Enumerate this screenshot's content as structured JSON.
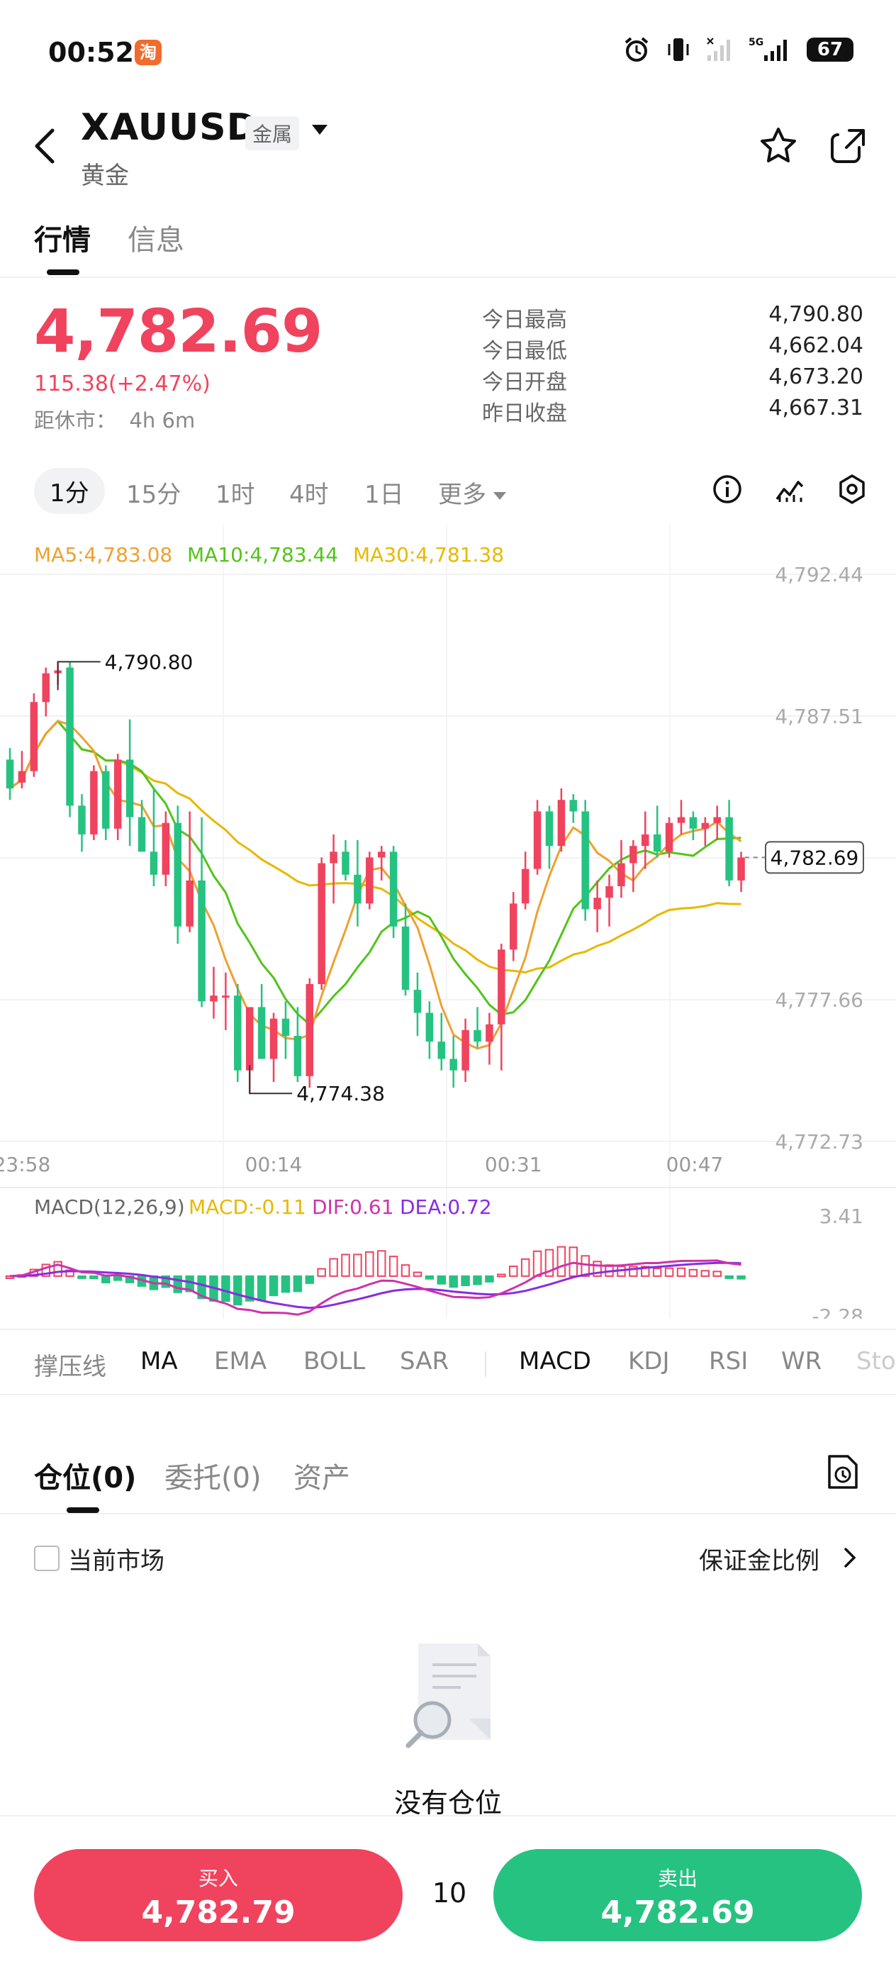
{
  "status_bar": {
    "time": "00:52",
    "app_badge": "淘",
    "network": "5G",
    "battery": "67"
  },
  "header": {
    "symbol": "XAUUSD",
    "category_badge": "金属",
    "name": "黄金"
  },
  "tabs": [
    {
      "label": "行情"
    },
    {
      "label": "信息"
    }
  ],
  "quote": {
    "price": "4,782.69",
    "change": "115.38(+2.47%)",
    "close_in_label": "距休市：",
    "close_in_value": "4h 6m",
    "stats": [
      {
        "label": "今日最高",
        "value": "4,790.80"
      },
      {
        "label": "今日最低",
        "value": "4,662.04"
      },
      {
        "label": "今日开盘",
        "value": "4,673.20"
      },
      {
        "label": "昨日收盘",
        "value": "4,667.31"
      }
    ]
  },
  "intervals": [
    "1分",
    "15分",
    "1时",
    "4时",
    "1日",
    "更多"
  ],
  "ma_legend": {
    "ma5": "MA5:4,783.08",
    "ma10": "MA10:4,783.44",
    "ma30": "MA30:4,781.38"
  },
  "macd_legend": {
    "name": "MACD(12,26,9)",
    "macd": "MACD:-0.11",
    "dif": "DIF:0.61",
    "dea": "DEA:0.72"
  },
  "chart_data": {
    "type": "candlestick",
    "series_name": "XAUUSD 1分",
    "y_ticks": [
      "4,792.44",
      "4,787.51",
      "4,782.69",
      "4,777.66",
      "4,772.73"
    ],
    "ylim": [
      4772.73,
      4792.44
    ],
    "x_ticks": [
      "23:58",
      "00:14",
      "00:31",
      "00:47"
    ],
    "high_label": "4,790.80",
    "low_label": "4,774.38",
    "current_price_label": "4,782.69",
    "candles": [
      [
        4786.0,
        4786.4,
        4784.6,
        4785.0
      ],
      [
        4785.2,
        4786.3,
        4785.0,
        4785.6
      ],
      [
        4785.6,
        4788.3,
        4785.4,
        4788.0
      ],
      [
        4788.0,
        4789.2,
        4787.5,
        4789.0
      ],
      [
        4789.0,
        4789.4,
        4788.6,
        4789.1
      ],
      [
        4789.2,
        4789.4,
        4784.0,
        4784.4
      ],
      [
        4784.4,
        4784.8,
        4782.8,
        4783.4
      ],
      [
        4783.4,
        4785.8,
        4783.2,
        4785.6
      ],
      [
        4785.6,
        4785.8,
        4783.2,
        4783.6
      ],
      [
        4783.6,
        4786.2,
        4783.2,
        4786.0
      ],
      [
        4786.0,
        4787.4,
        4783.0,
        4784.0
      ],
      [
        4784.0,
        4784.6,
        4782.8,
        4782.8
      ],
      [
        4782.8,
        4785.0,
        4781.6,
        4782.0
      ],
      [
        4782.0,
        4784.2,
        4781.6,
        4783.8
      ],
      [
        4783.8,
        4784.4,
        4779.6,
        4780.2
      ],
      [
        4780.2,
        4784.2,
        4780.0,
        4781.8
      ],
      [
        4781.8,
        4784.0,
        4777.4,
        4777.6
      ],
      [
        4777.6,
        4778.8,
        4777.0,
        4777.8
      ],
      [
        4777.8,
        4778.6,
        4776.6,
        4777.8
      ],
      [
        4777.8,
        4778.2,
        4774.8,
        4775.2
      ],
      [
        4775.2,
        4777.4,
        4774.4,
        4777.4
      ],
      [
        4777.4,
        4778.2,
        4775.6,
        4775.6
      ],
      [
        4775.6,
        4777.2,
        4774.8,
        4777.0
      ],
      [
        4777.0,
        4777.6,
        4775.6,
        4776.4
      ],
      [
        4776.4,
        4777.4,
        4774.8,
        4775.0
      ],
      [
        4775.0,
        4778.4,
        4774.6,
        4778.2
      ],
      [
        4778.2,
        4782.6,
        4778.0,
        4782.4
      ],
      [
        4782.4,
        4783.4,
        4781.0,
        4782.8
      ],
      [
        4782.8,
        4783.2,
        4781.8,
        4782.0
      ],
      [
        4782.0,
        4783.2,
        4780.2,
        4781.0
      ],
      [
        4781.0,
        4782.8,
        4780.8,
        4782.6
      ],
      [
        4782.6,
        4783.0,
        4781.8,
        4782.8
      ],
      [
        4782.8,
        4783.0,
        4779.8,
        4780.2
      ],
      [
        4780.2,
        4781.0,
        4777.8,
        4778.0
      ],
      [
        4778.0,
        4778.6,
        4776.4,
        4777.2
      ],
      [
        4777.2,
        4777.6,
        4775.6,
        4776.2
      ],
      [
        4776.2,
        4777.2,
        4775.2,
        4775.6
      ],
      [
        4775.6,
        4776.4,
        4774.6,
        4775.2
      ],
      [
        4775.2,
        4777.0,
        4774.8,
        4776.6
      ],
      [
        4776.6,
        4777.4,
        4776.0,
        4776.2
      ],
      [
        4776.2,
        4777.2,
        4775.4,
        4776.8
      ],
      [
        4776.8,
        4779.6,
        4775.2,
        4779.4
      ],
      [
        4779.4,
        4781.4,
        4779.0,
        4781.0
      ],
      [
        4781.0,
        4782.8,
        4780.8,
        4782.2
      ],
      [
        4782.2,
        4784.6,
        4782.0,
        4784.2
      ],
      [
        4784.2,
        4784.4,
        4782.2,
        4783.0
      ],
      [
        4783.0,
        4785.0,
        4782.8,
        4784.6
      ],
      [
        4784.6,
        4784.8,
        4783.8,
        4784.2
      ],
      [
        4784.2,
        4784.6,
        4780.4,
        4780.8
      ],
      [
        4780.8,
        4781.8,
        4780.0,
        4781.2
      ],
      [
        4781.2,
        4782.0,
        4780.2,
        4781.6
      ],
      [
        4781.6,
        4783.2,
        4781.2,
        4782.4
      ],
      [
        4782.4,
        4783.2,
        4781.4,
        4783.0
      ],
      [
        4783.0,
        4784.2,
        4782.2,
        4783.4
      ],
      [
        4783.4,
        4784.4,
        4782.6,
        4782.8
      ],
      [
        4782.8,
        4784.0,
        4782.6,
        4783.8
      ],
      [
        4783.8,
        4784.6,
        4783.4,
        4784.0
      ],
      [
        4784.0,
        4784.2,
        4783.2,
        4783.6
      ],
      [
        4783.6,
        4784.0,
        4783.0,
        4783.8
      ],
      [
        4783.8,
        4784.4,
        4783.2,
        4784.0
      ],
      [
        4784.0,
        4784.6,
        4781.6,
        4781.8
      ],
      [
        4781.8,
        4782.8,
        4781.4,
        4782.6
      ]
    ],
    "ma5_color": "#f0a030",
    "ma10_color": "#52c41a",
    "ma30_color": "#e8b800",
    "macd": {
      "y_ticks": [
        "3.41",
        "-2.28"
      ],
      "ylim": [
        -2.28,
        3.41
      ],
      "dif_color": "#cc33aa",
      "dea_color": "#8a2be2"
    },
    "up_color": "#f0435e",
    "down_color": "#26c281"
  },
  "indicators": [
    "撑压线",
    "MA",
    "EMA",
    "BOLL",
    "SAR",
    "MACD",
    "KDJ",
    "RSI",
    "WR",
    "StochRSI"
  ],
  "positions": {
    "tabs": [
      {
        "label": "仓位(0)"
      },
      {
        "label": "委托(0)"
      },
      {
        "label": "资产"
      }
    ],
    "current_market": "当前市场",
    "margin_ratio": "保证金比例",
    "empty_text": "没有仓位"
  },
  "bottom_bar": {
    "buy_label": "买入",
    "buy_price": "4,782.79",
    "quantity": "10",
    "sell_label": "卖出",
    "sell_price": "4,782.69"
  }
}
